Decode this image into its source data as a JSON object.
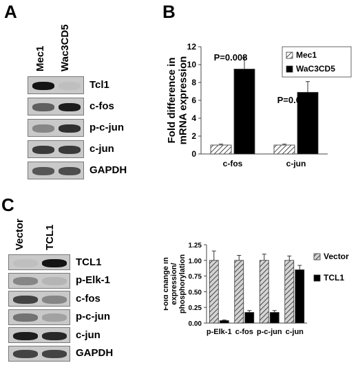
{
  "panel_a": {
    "letter": "A",
    "lanes": [
      "Mec1",
      "Wac3CD5"
    ],
    "blots": [
      {
        "label": "Tcl1",
        "intensities": [
          0.95,
          0.05
        ]
      },
      {
        "label": "c-fos",
        "intensities": [
          0.55,
          0.9
        ]
      },
      {
        "label": "p-c-jun",
        "intensities": [
          0.35,
          0.8
        ]
      },
      {
        "label": "c-jun",
        "intensities": [
          0.75,
          0.75
        ]
      },
      {
        "label": "GAPDH",
        "intensities": [
          0.6,
          0.65
        ]
      }
    ]
  },
  "panel_c_blot": {
    "letter": "C",
    "lanes": [
      "Vector",
      "TCL1"
    ],
    "blots": [
      {
        "label": "TCL1",
        "intensities": [
          0.05,
          0.95
        ]
      },
      {
        "label": "p-Elk-1",
        "intensities": [
          0.35,
          0.1
        ]
      },
      {
        "label": "c-fos",
        "intensities": [
          0.7,
          0.35
        ]
      },
      {
        "label": "p-c-jun",
        "intensities": [
          0.45,
          0.2
        ]
      },
      {
        "label": "c-jun",
        "intensities": [
          0.9,
          0.85
        ]
      },
      {
        "label": "GAPDH",
        "intensities": [
          0.7,
          0.7
        ]
      }
    ]
  },
  "panel_b_letter": "B",
  "chart_data": [
    {
      "type": "bar",
      "panel": "B",
      "ylabel": "Fold difference in mRNA expression",
      "categories": [
        "c-fos",
        "c-jun"
      ],
      "ylim": [
        0,
        12
      ],
      "yticks": [
        0,
        2,
        4,
        6,
        8,
        10,
        12
      ],
      "series": [
        {
          "name": "Mec1",
          "values": [
            1,
            1
          ],
          "errors": [
            0.1,
            0.1
          ],
          "pattern": "hatched"
        },
        {
          "name": "WaC3CD5",
          "values": [
            9.5,
            6.9
          ],
          "errors": [
            1.3,
            1.2
          ],
          "pattern": "solid-black"
        }
      ],
      "annotations": [
        "P=0.008",
        "P=0.009"
      ],
      "legend_position": "top-right"
    },
    {
      "type": "bar",
      "panel": "C",
      "ylabel": "Fold change in expression/ phosphorylation",
      "categories": [
        "p-Elk-1",
        "c-fos",
        "p-c-jun",
        "c-jun"
      ],
      "ylim": [
        0,
        1.25
      ],
      "yticks": [
        "0.00",
        "0.25",
        "0.50",
        "0.75",
        "1.00",
        "1.25"
      ],
      "series": [
        {
          "name": "Vector",
          "values": [
            1.0,
            1.0,
            1.0,
            1.0
          ],
          "errors": [
            0.15,
            0.08,
            0.1,
            0.07
          ],
          "pattern": "hatched-gray"
        },
        {
          "name": "TCL1",
          "values": [
            0.04,
            0.17,
            0.17,
            0.85
          ],
          "errors": [
            0.01,
            0.03,
            0.03,
            0.07
          ],
          "pattern": "solid-black"
        }
      ],
      "legend_position": "right"
    }
  ]
}
